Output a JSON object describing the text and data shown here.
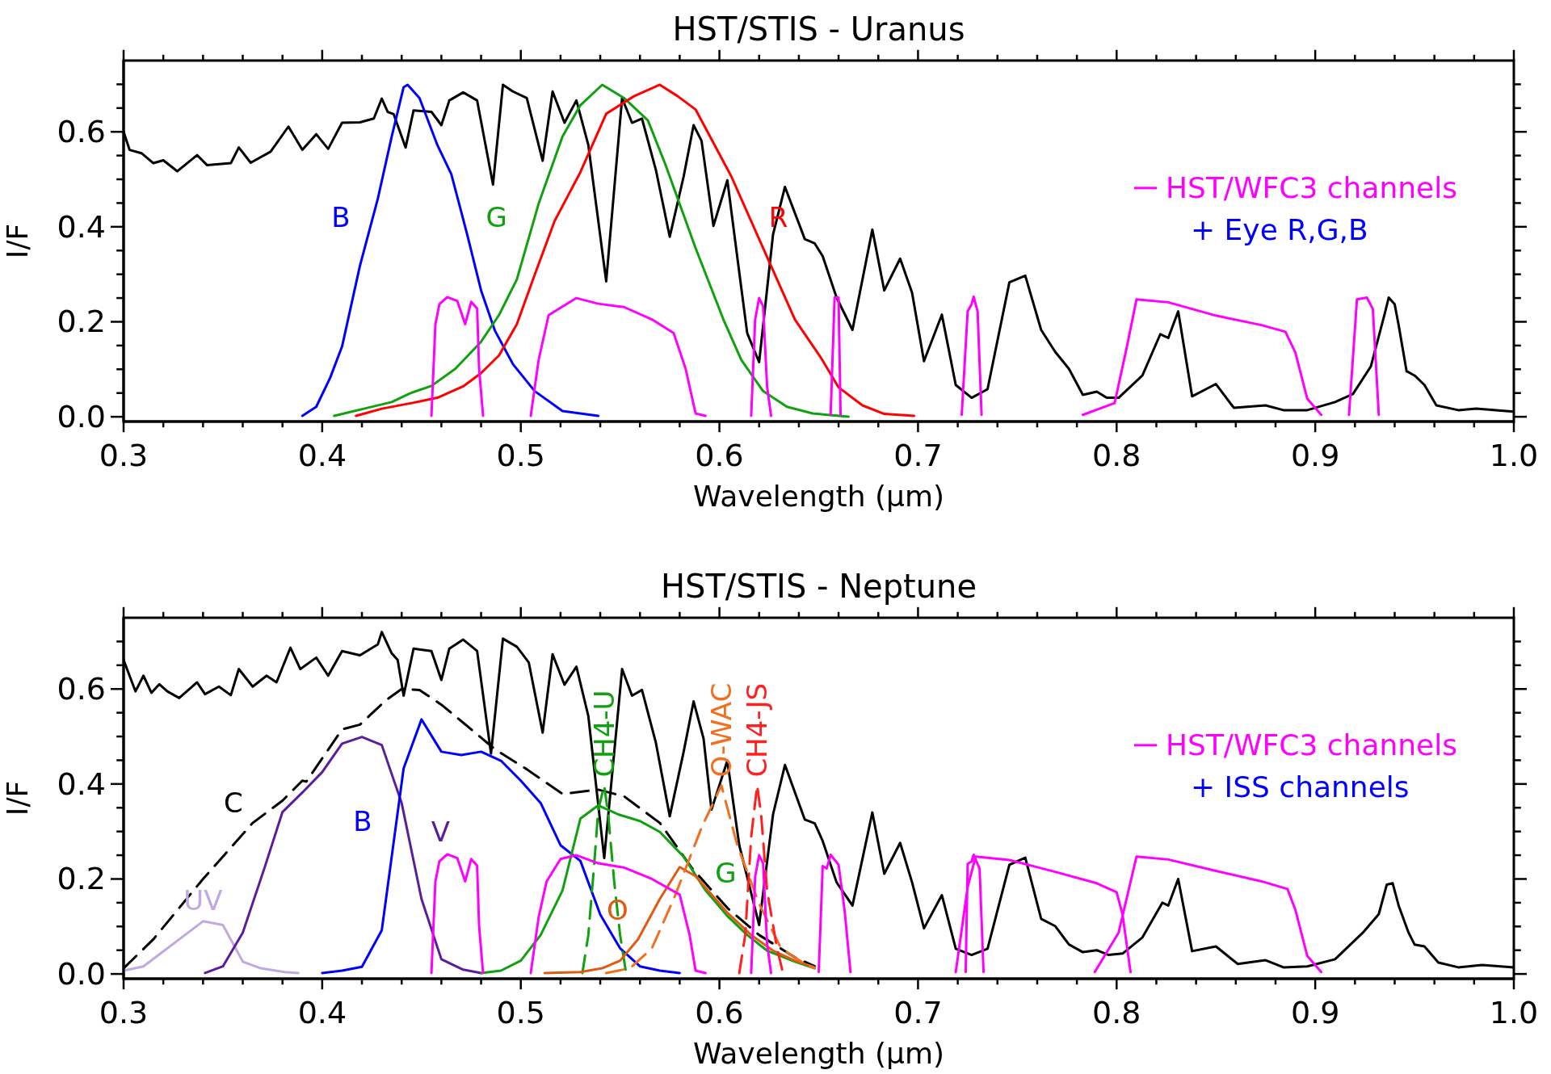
{
  "chart_data": [
    {
      "type": "line",
      "title": "HST/STIS - Uranus",
      "xlabel": "Wavelength (μm)",
      "ylabel": "I/F",
      "xlim": [
        0.3,
        1.0
      ],
      "ylim": [
        -0.01,
        0.75
      ],
      "xticks": [
        0.3,
        {
          "value": 0.32,
          "label": null
        },
        {
          "value": 0.34,
          "label": null
        },
        {
          "value": 0.36,
          "label": null
        },
        {
          "value": 0.38,
          "label": null
        },
        0.4,
        {
          "value": 0.42,
          "label": null
        },
        {
          "value": 0.44,
          "label": null
        },
        {
          "value": 0.46,
          "label": null
        },
        {
          "value": 0.48,
          "label": null
        },
        0.5,
        {
          "value": 0.52,
          "label": null
        },
        {
          "value": 0.54,
          "label": null
        },
        {
          "value": 0.56,
          "label": null
        },
        {
          "value": 0.58,
          "label": null
        },
        0.6,
        {
          "value": 0.62,
          "label": null
        },
        {
          "value": 0.64,
          "label": null
        },
        {
          "value": 0.66,
          "label": null
        },
        {
          "value": 0.68,
          "label": null
        },
        0.7,
        {
          "value": 0.72,
          "label": null
        },
        {
          "value": 0.74,
          "label": null
        },
        {
          "value": 0.76,
          "label": null
        },
        {
          "value": 0.78,
          "label": null
        },
        0.8,
        {
          "value": 0.82,
          "label": null
        },
        {
          "value": 0.84,
          "label": null
        },
        {
          "value": 0.86,
          "label": null
        },
        {
          "value": 0.88,
          "label": null
        },
        0.9,
        {
          "value": 0.92,
          "label": null
        },
        {
          "value": 0.94,
          "label": null
        },
        {
          "value": 0.96,
          "label": null
        },
        {
          "value": 0.98,
          "label": null
        },
        {
          "value": 1.0,
          "label": "1.0"
        }
      ],
      "yticks": [
        {
          "value": 0,
          "label": "0.0"
        },
        {
          "value": 0.05,
          "label": null
        },
        {
          "value": 0.1,
          "label": null
        },
        {
          "value": 0.15,
          "label": null
        },
        0.2,
        {
          "value": 0.25,
          "label": null
        },
        {
          "value": 0.3,
          "label": null
        },
        {
          "value": 0.35,
          "label": null
        },
        0.4,
        {
          "value": 0.45,
          "label": null
        },
        {
          "value": 0.5,
          "label": null
        },
        {
          "value": 0.55,
          "label": null
        },
        0.6,
        {
          "value": 0.65,
          "label": null
        },
        {
          "value": 0.7,
          "label": null
        }
      ],
      "legend": "right",
      "annotations": [
        "+ Eye R,G,B"
      ],
      "series": [
        {
          "color": "#000000",
          "x": [
            0.3,
            0.303,
            0.309,
            0.315,
            0.32,
            0.327,
            0.337,
            0.342,
            0.354,
            0.358,
            0.364,
            0.374,
            0.383,
            0.39,
            0.397,
            0.403,
            0.41,
            0.419,
            0.426,
            0.43,
            0.433,
            0.436,
            0.442,
            0.446,
            0.455,
            0.46,
            0.464,
            0.471,
            0.478,
            0.486,
            0.491,
            0.496,
            0.503,
            0.511,
            0.516,
            0.522,
            0.528,
            0.534,
            0.543,
            0.551,
            0.556,
            0.561,
            0.568,
            0.575,
            0.582,
            0.587,
            0.591,
            0.597,
            0.604,
            0.609,
            0.614,
            0.62,
            0.627,
            0.633,
            0.643,
            0.648,
            0.652,
            0.659,
            0.667,
            0.677,
            0.683,
            0.691,
            0.697,
            0.703,
            0.712,
            0.719,
            0.727,
            0.735,
            0.746,
            0.754,
            0.762,
            0.769,
            0.776,
            0.783,
            0.79,
            0.795,
            0.801,
            0.813,
            0.822,
            0.826,
            0.831,
            0.838,
            0.85,
            0.859,
            0.875,
            0.884,
            0.896,
            0.91,
            0.919,
            0.928,
            0.935,
            0.937,
            0.94,
            0.942,
            0.946,
            0.95,
            0.955,
            0.961,
            0.972,
            0.981,
            1.0
          ],
          "values": [
            0.6,
            0.562,
            0.555,
            0.534,
            0.54,
            0.517,
            0.551,
            0.53,
            0.534,
            0.567,
            0.535,
            0.558,
            0.611,
            0.562,
            0.595,
            0.564,
            0.619,
            0.62,
            0.628,
            0.67,
            0.642,
            0.637,
            0.567,
            0.645,
            0.642,
            0.614,
            0.666,
            0.683,
            0.666,
            0.489,
            0.699,
            0.685,
            0.671,
            0.539,
            0.685,
            0.619,
            0.666,
            0.572,
            0.285,
            0.671,
            0.619,
            0.628,
            0.52,
            0.379,
            0.506,
            0.614,
            0.581,
            0.402,
            0.498,
            0.336,
            0.176,
            0.115,
            0.384,
            0.484,
            0.374,
            0.365,
            0.338,
            0.251,
            0.183,
            0.394,
            0.266,
            0.333,
            0.261,
            0.117,
            0.215,
            0.067,
            0.04,
            0.058,
            0.283,
            0.297,
            0.183,
            0.137,
            0.101,
            0.046,
            0.053,
            0.04,
            0.04,
            0.087,
            0.174,
            0.166,
            0.222,
            0.043,
            0.069,
            0.019,
            0.024,
            0.014,
            0.014,
            0.031,
            0.048,
            0.106,
            0.217,
            0.251,
            0.237,
            0.193,
            0.096,
            0.087,
            0.067,
            0.024,
            0.014,
            0.017,
            0.011
          ]
        },
        {
          "name": "B",
          "color": "#0000ff",
          "x": [
            0.39,
            0.397,
            0.404,
            0.41,
            0.419,
            0.428,
            0.435,
            0.441,
            0.443,
            0.449,
            0.458,
            0.465,
            0.473,
            0.48,
            0.487,
            0.496,
            0.507,
            0.521,
            0.539
          ],
          "values": [
            0.002,
            0.021,
            0.082,
            0.148,
            0.318,
            0.459,
            0.59,
            0.694,
            0.699,
            0.671,
            0.572,
            0.511,
            0.384,
            0.266,
            0.181,
            0.111,
            0.054,
            0.012,
            0.002
          ]
        },
        {
          "name": "G",
          "color": "#10a010",
          "x": [
            0.406,
            0.421,
            0.435,
            0.444,
            0.455,
            0.467,
            0.48,
            0.489,
            0.498,
            0.509,
            0.521,
            0.53,
            0.541,
            0.552,
            0.564,
            0.573,
            0.588,
            0.602,
            0.611,
            0.622,
            0.634,
            0.647,
            0.665
          ],
          "values": [
            0.002,
            0.017,
            0.031,
            0.049,
            0.065,
            0.101,
            0.158,
            0.214,
            0.289,
            0.449,
            0.59,
            0.656,
            0.699,
            0.671,
            0.624,
            0.529,
            0.355,
            0.205,
            0.12,
            0.054,
            0.021,
            0.007,
            0.0
          ]
        },
        {
          "name": "R",
          "color": "#ff0000",
          "x": [
            0.417,
            0.43,
            0.444,
            0.458,
            0.471,
            0.48,
            0.489,
            0.498,
            0.507,
            0.517,
            0.53,
            0.543,
            0.557,
            0.57,
            0.579,
            0.588,
            0.606,
            0.62,
            0.638,
            0.651,
            0.66,
            0.672,
            0.683,
            0.698
          ],
          "values": [
            0.002,
            0.017,
            0.028,
            0.04,
            0.064,
            0.092,
            0.129,
            0.195,
            0.299,
            0.412,
            0.515,
            0.638,
            0.675,
            0.699,
            0.675,
            0.647,
            0.506,
            0.374,
            0.205,
            0.125,
            0.062,
            0.024,
            0.006,
            0.002
          ]
        },
        {
          "name": "HST/WFC3 channels",
          "color": "#ff00ff",
          "x": [
            0.455,
            0.457,
            0.459,
            0.463,
            0.468,
            0.472,
            0.475,
            0.478,
            0.479,
            0.481,
            0.49,
            0.505,
            0.509,
            0.514,
            0.528,
            0.539,
            0.552,
            0.566,
            0.577,
            0.583,
            0.588,
            0.593,
            0.6,
            0.616,
            0.618,
            0.62,
            0.622,
            0.624,
            0.626,
            0.64,
            0.656,
            0.658,
            0.66,
            0.661,
            0.7,
            0.722,
            0.725,
            0.727,
            0.728,
            0.73,
            0.732,
            0.76,
            0.783,
            0.799,
            0.805,
            0.81,
            0.826,
            0.85,
            0.873,
            0.885,
            0.89,
            0.896,
            0.903,
            0.91,
            0.917,
            0.921,
            0.926,
            0.929,
            0.932
          ],
          "values": [
            0.002,
            0.195,
            0.237,
            0.252,
            0.244,
            0.195,
            0.242,
            0.228,
            0.101,
            0.002,
            null,
            0.002,
            0.12,
            0.214,
            0.25,
            0.238,
            0.231,
            0.205,
            0.176,
            0.101,
            0.007,
            0.002,
            null,
            0.002,
            0.205,
            0.25,
            0.233,
            0.064,
            0.002,
            null,
            0.004,
            0.251,
            0.251,
            0.004,
            null,
            0.004,
            0.222,
            0.237,
            0.253,
            0.222,
            0.004,
            null,
            0.004,
            0.029,
            0.144,
            0.247,
            0.241,
            0.213,
            0.193,
            0.179,
            0.135,
            0.038,
            0.004,
            null,
            0.004,
            0.247,
            0.251,
            0.227,
            0.004
          ]
        }
      ]
    },
    {
      "type": "line",
      "title": "HST/STIS - Neptune",
      "xlabel": "Wavelength (μm)",
      "ylabel": "I/F",
      "xlim": [
        0.3,
        1.0
      ],
      "ylim": [
        -0.01,
        0.75
      ],
      "xticks": [
        0.3,
        {
          "value": 0.32,
          "label": null
        },
        {
          "value": 0.34,
          "label": null
        },
        {
          "value": 0.36,
          "label": null
        },
        {
          "value": 0.38,
          "label": null
        },
        0.4,
        {
          "value": 0.42,
          "label": null
        },
        {
          "value": 0.44,
          "label": null
        },
        {
          "value": 0.46,
          "label": null
        },
        {
          "value": 0.48,
          "label": null
        },
        0.5,
        {
          "value": 0.52,
          "label": null
        },
        {
          "value": 0.54,
          "label": null
        },
        {
          "value": 0.56,
          "label": null
        },
        {
          "value": 0.58,
          "label": null
        },
        0.6,
        {
          "value": 0.62,
          "label": null
        },
        {
          "value": 0.64,
          "label": null
        },
        {
          "value": 0.66,
          "label": null
        },
        {
          "value": 0.68,
          "label": null
        },
        0.7,
        {
          "value": 0.72,
          "label": null
        },
        {
          "value": 0.74,
          "label": null
        },
        {
          "value": 0.76,
          "label": null
        },
        {
          "value": 0.78,
          "label": null
        },
        0.8,
        {
          "value": 0.82,
          "label": null
        },
        {
          "value": 0.84,
          "label": null
        },
        {
          "value": 0.86,
          "label": null
        },
        {
          "value": 0.88,
          "label": null
        },
        0.9,
        {
          "value": 0.92,
          "label": null
        },
        {
          "value": 0.94,
          "label": null
        },
        {
          "value": 0.96,
          "label": null
        },
        {
          "value": 0.98,
          "label": null
        },
        {
          "value": 1.0,
          "label": "1.0"
        }
      ],
      "yticks": [
        {
          "value": 0,
          "label": "0.0"
        },
        {
          "value": 0.05,
          "label": null
        },
        {
          "value": 0.1,
          "label": null
        },
        {
          "value": 0.15,
          "label": null
        },
        0.2,
        {
          "value": 0.25,
          "label": null
        },
        {
          "value": 0.3,
          "label": null
        },
        {
          "value": 0.35,
          "label": null
        },
        0.4,
        {
          "value": 0.45,
          "label": null
        },
        {
          "value": 0.5,
          "label": null
        },
        {
          "value": 0.55,
          "label": null
        },
        0.6,
        {
          "value": 0.65,
          "label": null
        },
        {
          "value": 0.7,
          "label": null
        }
      ],
      "legend": "right",
      "annotations": [
        "+ ISS channels"
      ],
      "series": [
        {
          "color": "#000000",
          "x": [
            0.3,
            0.306,
            0.31,
            0.314,
            0.318,
            0.322,
            0.328,
            0.337,
            0.341,
            0.348,
            0.354,
            0.358,
            0.365,
            0.372,
            0.377,
            0.384,
            0.389,
            0.397,
            0.403,
            0.41,
            0.419,
            0.428,
            0.43,
            0.435,
            0.438,
            0.441,
            0.446,
            0.455,
            0.46,
            0.464,
            0.471,
            0.478,
            0.485,
            0.491,
            0.498,
            0.504,
            0.511,
            0.516,
            0.522,
            0.528,
            0.534,
            0.542,
            0.551,
            0.556,
            0.561,
            0.568,
            0.575,
            0.582,
            0.587,
            0.592,
            0.596,
            0.604,
            0.61,
            0.62,
            0.627,
            0.633,
            0.643,
            0.648,
            0.652,
            0.659,
            0.667,
            0.677,
            0.683,
            0.691,
            0.697,
            0.703,
            0.712,
            0.719,
            0.727,
            0.735,
            0.746,
            0.754,
            0.762,
            0.769,
            0.776,
            0.783,
            0.79,
            0.796,
            0.803,
            0.813,
            0.823,
            0.826,
            0.831,
            0.838,
            0.85,
            0.861,
            0.875,
            0.884,
            0.896,
            0.91,
            0.924,
            0.932,
            0.936,
            0.939,
            0.942,
            0.947,
            0.95,
            0.955,
            0.962,
            0.972,
            0.984,
            1.0
          ],
          "values": [
            0.661,
            0.595,
            0.628,
            0.592,
            0.61,
            0.595,
            0.581,
            0.614,
            0.589,
            0.605,
            0.587,
            0.642,
            0.605,
            0.628,
            0.614,
            0.687,
            0.642,
            0.666,
            0.628,
            0.68,
            0.671,
            0.694,
            0.72,
            0.675,
            0.661,
            0.586,
            0.685,
            0.68,
            0.619,
            0.685,
            0.704,
            0.68,
            0.464,
            0.706,
            0.689,
            0.656,
            0.508,
            0.673,
            0.609,
            0.647,
            0.543,
            0.244,
            0.642,
            0.586,
            0.598,
            0.487,
            0.332,
            0.468,
            0.574,
            0.496,
            0.346,
            0.449,
            0.271,
            0.103,
            0.336,
            0.44,
            0.325,
            0.317,
            0.28,
            0.193,
            0.144,
            0.34,
            0.211,
            0.276,
            0.193,
            0.096,
            0.166,
            0.053,
            0.04,
            0.053,
            0.23,
            0.245,
            0.116,
            0.101,
            0.062,
            0.046,
            0.05,
            0.04,
            0.043,
            0.077,
            0.15,
            0.144,
            0.2,
            0.048,
            0.058,
            0.021,
            0.029,
            0.014,
            0.016,
            0.031,
            0.087,
            0.126,
            0.188,
            0.191,
            0.144,
            0.087,
            0.062,
            0.058,
            0.024,
            0.014,
            0.019,
            0.014
          ]
        },
        {
          "name": "C",
          "color": "#000000",
          "line_style": "dashed",
          "x": [
            0.3,
            0.315,
            0.34,
            0.365,
            0.38,
            0.39,
            0.392,
            0.41,
            0.419,
            0.432,
            0.44,
            0.449,
            0.46,
            0.471,
            0.487,
            0.503,
            0.521,
            0.539,
            0.552,
            0.57,
            0.586,
            0.604,
            0.62,
            0.638,
            0.648
          ],
          "values": [
            0.012,
            0.073,
            0.2,
            0.318,
            0.365,
            0.407,
            0.405,
            0.515,
            0.525,
            0.576,
            0.6,
            0.598,
            0.567,
            0.529,
            0.473,
            0.431,
            0.379,
            0.388,
            0.374,
            0.318,
            0.224,
            0.139,
            0.082,
            0.035,
            0.016
          ]
        },
        {
          "name": "UV",
          "color": "#c0a8e0",
          "x": [
            0.3,
            0.31,
            0.34,
            0.35,
            0.36,
            0.369,
            0.381,
            0.388
          ],
          "values": [
            0.007,
            0.016,
            0.111,
            0.103,
            0.026,
            0.012,
            0.004,
            0.002
          ]
        },
        {
          "name": "V",
          "color": "#5a1e9a",
          "x": [
            0.341,
            0.35,
            0.36,
            0.371,
            0.38,
            0.39,
            0.4,
            0.41,
            0.42,
            0.43,
            0.44,
            0.45,
            0.46,
            0.471,
            0.48
          ],
          "values": [
            0.002,
            0.016,
            0.087,
            0.224,
            0.341,
            0.382,
            0.425,
            0.485,
            0.499,
            0.482,
            0.36,
            0.158,
            0.031,
            0.009,
            0.002
          ]
        },
        {
          "name": "B",
          "color": "#0000ff",
          "x": [
            0.4,
            0.41,
            0.42,
            0.43,
            0.441,
            0.45,
            0.46,
            0.47,
            0.48,
            0.49,
            0.5,
            0.51,
            0.52,
            0.53,
            0.54,
            0.55,
            0.56,
            0.57,
            0.58
          ],
          "values": [
            0.002,
            0.007,
            0.015,
            0.092,
            0.433,
            0.536,
            0.468,
            0.461,
            0.468,
            0.449,
            0.407,
            0.36,
            0.271,
            0.238,
            0.125,
            0.054,
            0.016,
            0.007,
            0.002
          ]
        },
        {
          "name": "G",
          "color": "#10a010",
          "x": [
            0.48,
            0.49,
            0.5,
            0.51,
            0.521,
            0.53,
            0.539,
            0.549,
            0.56,
            0.57,
            0.582,
            0.593,
            0.604,
            0.614,
            0.624,
            0.638,
            0.648
          ],
          "values": [
            0.002,
            0.007,
            0.028,
            0.082,
            0.176,
            0.327,
            0.355,
            0.336,
            0.322,
            0.299,
            0.247,
            0.176,
            0.122,
            0.082,
            0.049,
            0.026,
            0.012
          ]
        },
        {
          "name": "CH4-U",
          "color": "#10a010",
          "line_style": "dashed",
          "x": [
            0.531,
            0.534,
            0.537,
            0.539,
            0.542,
            0.544,
            0.547,
            0.55,
            0.553
          ],
          "values": [
            0.002,
            0.082,
            0.233,
            0.346,
            0.397,
            0.336,
            0.195,
            0.082,
            0.002
          ]
        },
        {
          "name": "O",
          "color": "#e05a10",
          "x": [
            0.512,
            0.53,
            0.541,
            0.55,
            0.559,
            0.57,
            0.58,
            0.588,
            0.604,
            0.616,
            0.627,
            0.638,
            0.648
          ],
          "values": [
            0.002,
            0.004,
            0.012,
            0.028,
            0.073,
            0.158,
            0.225,
            0.206,
            0.129,
            0.082,
            0.049,
            0.028,
            0.014
          ]
        },
        {
          "name": "O-WAC",
          "color": "#f07020",
          "line_style": "dashed",
          "x": [
            0.543,
            0.555,
            0.566,
            0.577,
            0.591,
            0.601,
            0.609,
            0.62,
            0.631,
            0.643,
            0.648
          ],
          "values": [
            0.002,
            0.012,
            0.054,
            0.158,
            0.308,
            0.397,
            0.271,
            0.148,
            0.054,
            0.021,
            0.012
          ]
        },
        {
          "name": "CH4-JS",
          "color": "#ff2020",
          "line_style": "dashed",
          "x": [
            0.61,
            0.613,
            0.616,
            0.619,
            0.621,
            0.624,
            0.629,
            0.632
          ],
          "values": [
            0.002,
            0.082,
            0.289,
            0.397,
            0.336,
            0.176,
            0.054,
            0.002
          ]
        },
        {
          "name": "HST/WFC3 channels",
          "color": "#ff00ff",
          "x": [
            0.455,
            0.457,
            0.459,
            0.463,
            0.468,
            0.472,
            0.475,
            0.478,
            0.479,
            0.481,
            0.49,
            0.505,
            0.509,
            0.513,
            0.52,
            0.528,
            0.539,
            0.552,
            0.566,
            0.58,
            0.585,
            0.588,
            0.593,
            0.6,
            0.616,
            0.618,
            0.62,
            0.622,
            0.624,
            0.626,
            0.64,
            0.65,
            0.652,
            0.654,
            0.656,
            0.66,
            0.663,
            0.666,
            0.7,
            0.724,
            0.725,
            0.727,
            0.728,
            0.731,
            0.733,
            0.72,
            0.719,
            0.725,
            0.729,
            0.746,
            0.769,
            0.79,
            0.8,
            0.803,
            0.807,
            0.8,
            0.789,
            0.801,
            0.81,
            0.826,
            0.85,
            0.873,
            0.886,
            0.89,
            0.896,
            0.903
          ],
          "values": [
            0.002,
            0.195,
            0.237,
            0.252,
            0.244,
            0.195,
            0.242,
            0.228,
            0.101,
            0.002,
            null,
            0.002,
            0.12,
            0.195,
            0.242,
            0.25,
            0.233,
            0.224,
            0.2,
            0.167,
            0.082,
            0.007,
            0.002,
            null,
            0.002,
            0.205,
            0.25,
            0.233,
            0.064,
            0.002,
            null,
            0.004,
            0.227,
            0.222,
            0.251,
            0.23,
            0.135,
            0.004,
            null,
            0.004,
            0.232,
            0.237,
            0.251,
            0.222,
            0.004,
            null,
            0.004,
            0.183,
            0.247,
            0.24,
            0.215,
            0.191,
            0.172,
            0.125,
            0.004,
            null,
            0.004,
            0.087,
            0.247,
            0.241,
            0.217,
            0.195,
            0.179,
            0.135,
            0.038,
            0.004
          ]
        }
      ]
    }
  ]
}
